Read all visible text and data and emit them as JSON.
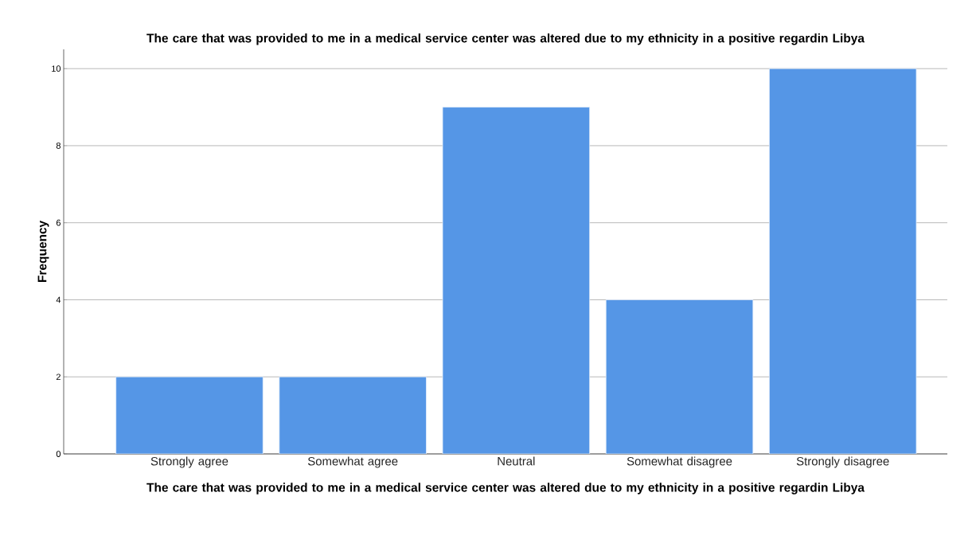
{
  "chart_data": {
    "type": "bar",
    "title": "The care that was provided to me in a medical service center was altered due to my ethnicity in a positive regardin Libya",
    "xlabel": "The care that was provided to me in a medical service center was altered due to my ethnicity in a positive regardin Libya",
    "ylabel": "Frequency",
    "categories": [
      "Strongly agree",
      "Somewhat agree",
      "Neutral",
      "Somewhat disagree",
      "Strongly disagree"
    ],
    "values": [
      2,
      2,
      9,
      4,
      10
    ],
    "color": "#5596e6",
    "ylim": [
      0,
      10.5
    ],
    "yticks": [
      0,
      2,
      4,
      6,
      8,
      10
    ],
    "grid": "y"
  }
}
